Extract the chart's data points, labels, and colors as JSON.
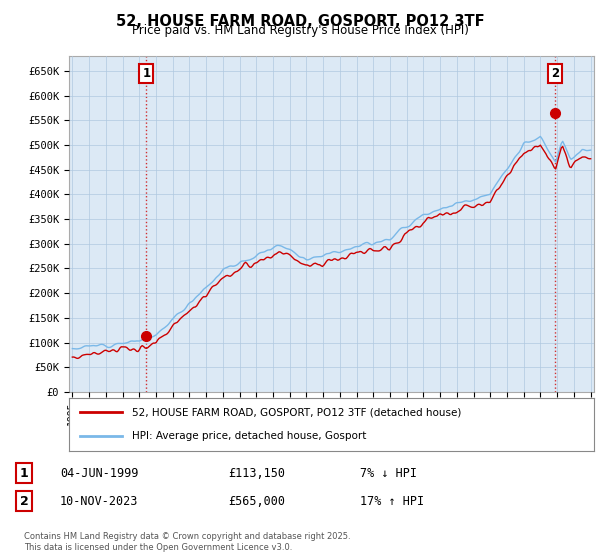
{
  "title_line1": "52, HOUSE FARM ROAD, GOSPORT, PO12 3TF",
  "title_line2": "Price paid vs. HM Land Registry's House Price Index (HPI)",
  "ylabel_ticks": [
    "£0",
    "£50K",
    "£100K",
    "£150K",
    "£200K",
    "£250K",
    "£300K",
    "£350K",
    "£400K",
    "£450K",
    "£500K",
    "£550K",
    "£600K",
    "£650K"
  ],
  "ytick_values": [
    0,
    50000,
    100000,
    150000,
    200000,
    250000,
    300000,
    350000,
    400000,
    450000,
    500000,
    550000,
    600000,
    650000
  ],
  "ylim": [
    0,
    680000
  ],
  "xlim_start": 1994.8,
  "xlim_end": 2026.2,
  "hpi_color": "#7ab8e8",
  "price_color": "#cc0000",
  "dashed_line_color": "#cc0000",
  "plot_bg_color": "#dce9f5",
  "marker1_x": 1999.43,
  "marker1_y": 113150,
  "marker2_x": 2023.86,
  "marker2_y": 565000,
  "legend_label1": "52, HOUSE FARM ROAD, GOSPORT, PO12 3TF (detached house)",
  "legend_label2": "HPI: Average price, detached house, Gosport",
  "annotation1_date": "04-JUN-1999",
  "annotation1_price": "£113,150",
  "annotation1_hpi": "7% ↓ HPI",
  "annotation2_date": "10-NOV-2023",
  "annotation2_price": "£565,000",
  "annotation2_hpi": "17% ↑ HPI",
  "footer": "Contains HM Land Registry data © Crown copyright and database right 2025.\nThis data is licensed under the Open Government Licence v3.0.",
  "background_color": "#ffffff",
  "grid_color": "#b0c8e0"
}
